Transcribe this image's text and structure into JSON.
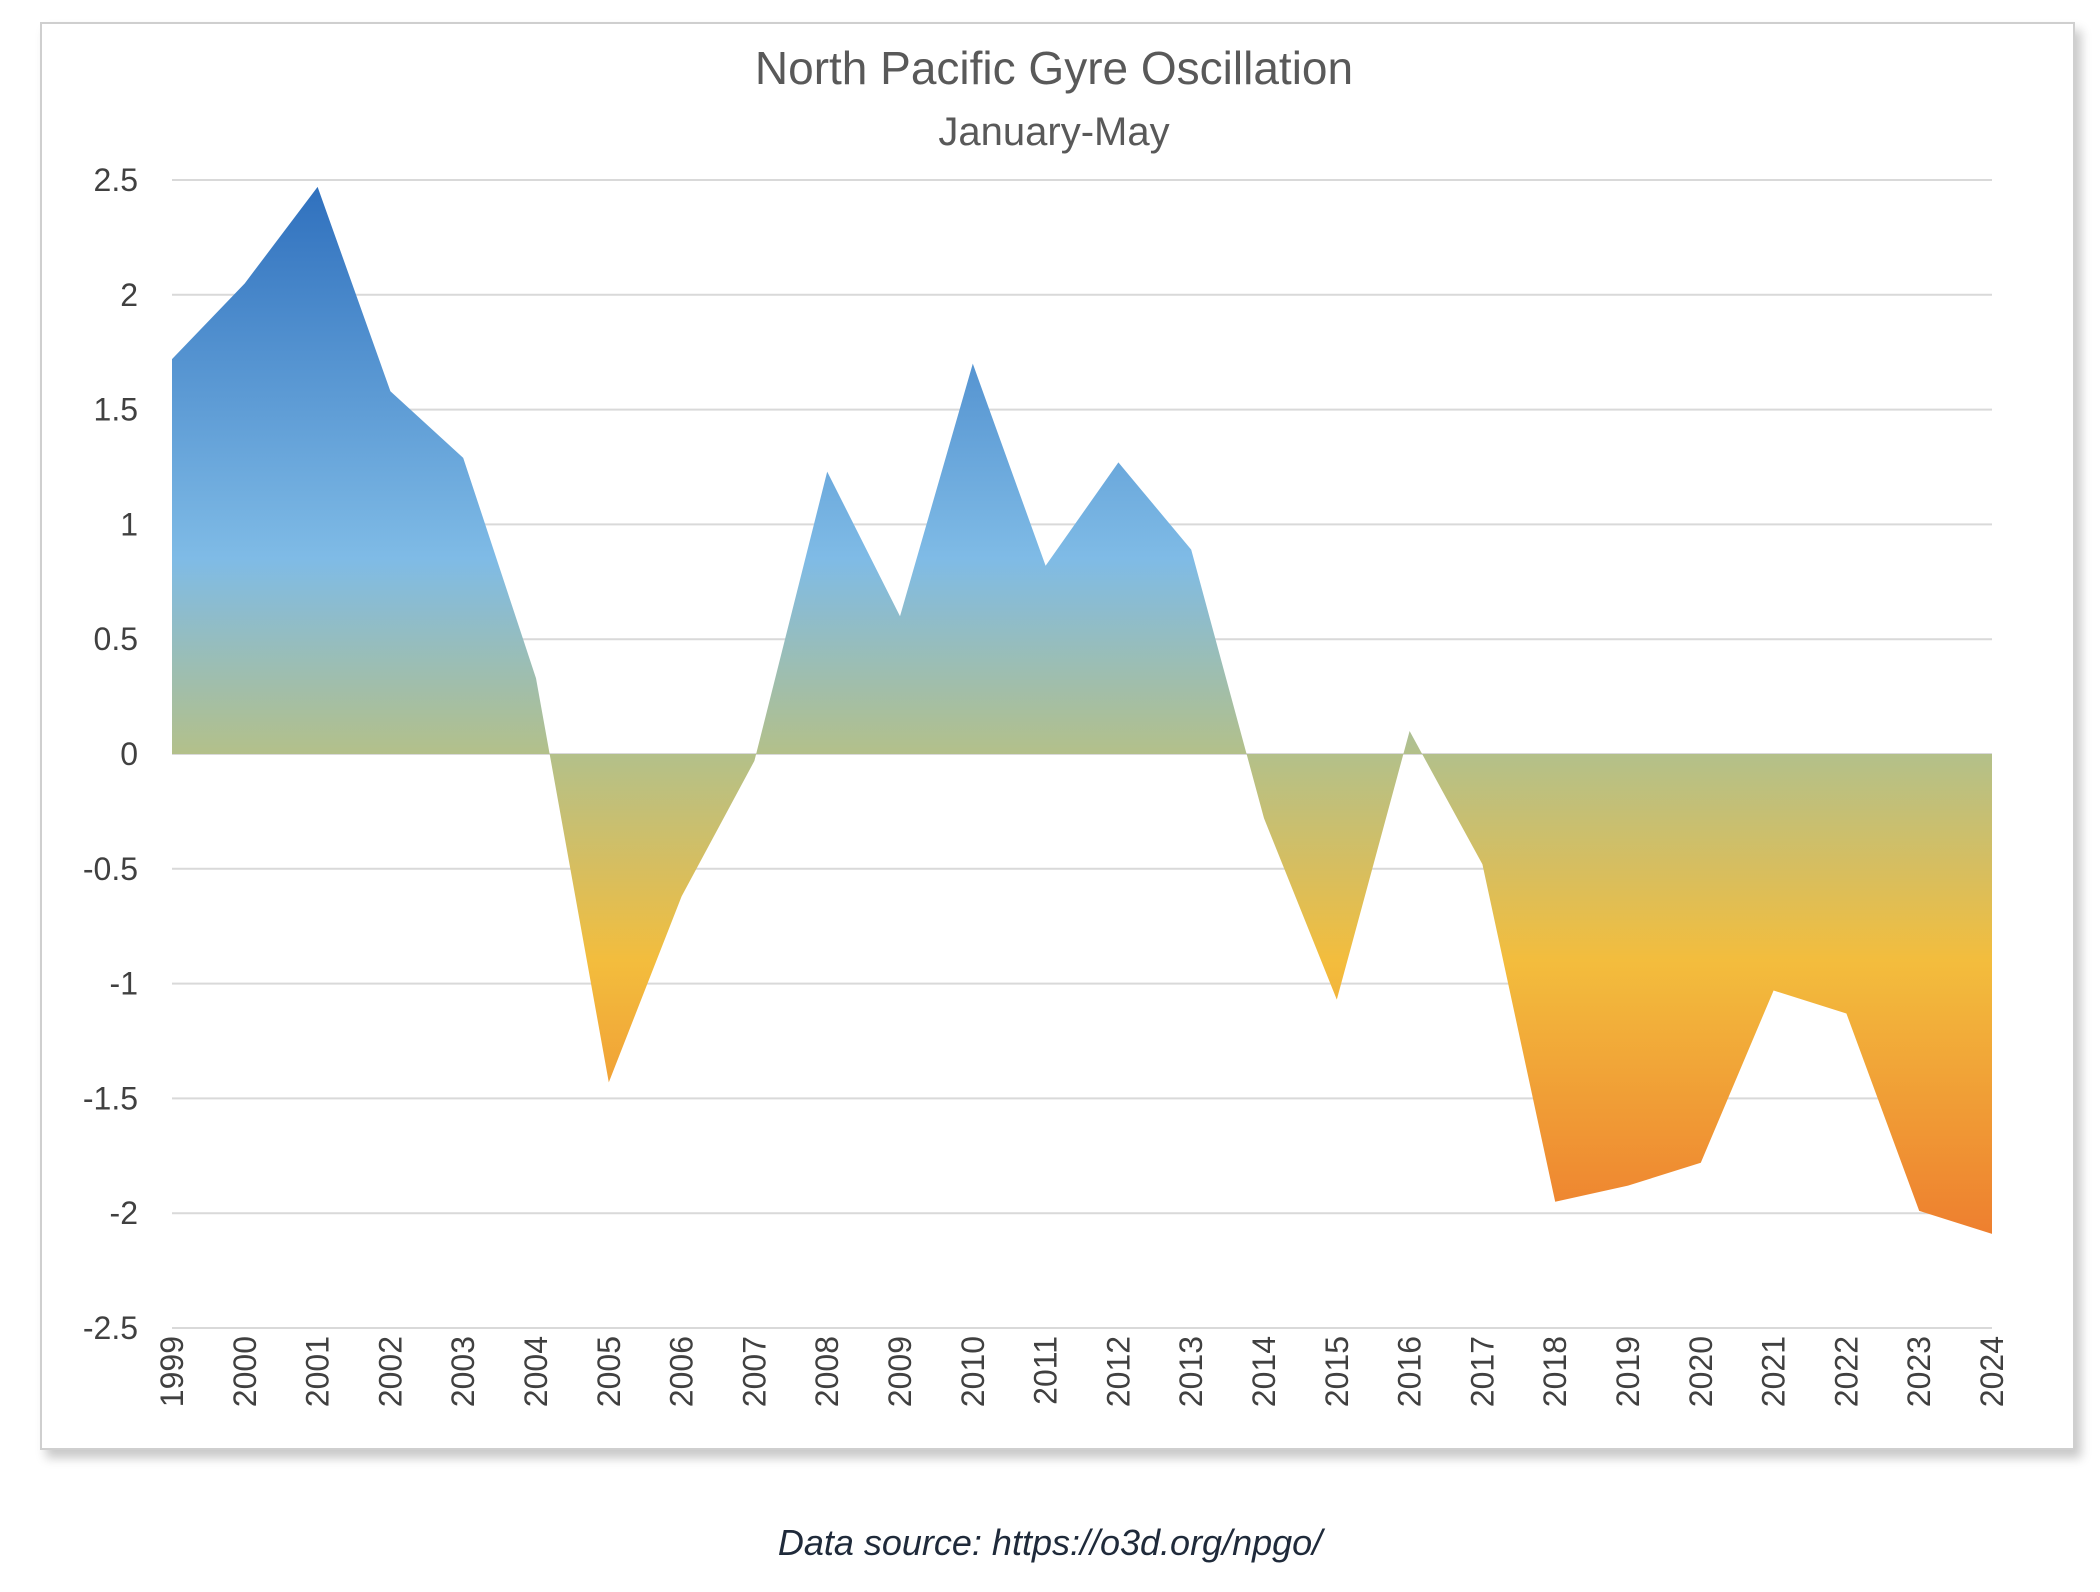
{
  "chart_data": {
    "type": "area",
    "title": "North Pacific Gyre Oscillation",
    "subtitle": "January-May",
    "xlabel": "",
    "ylabel": "",
    "x": [
      "1999",
      "2000",
      "2001",
      "2002",
      "2003",
      "2004",
      "2005",
      "2006",
      "2007",
      "2008",
      "2009",
      "2010",
      "2011",
      "2012",
      "2013",
      "2014",
      "2015",
      "2016",
      "2017",
      "2018",
      "2019",
      "2020",
      "2021",
      "2022",
      "2023",
      "2024"
    ],
    "values": [
      1.72,
      2.05,
      2.47,
      1.58,
      1.29,
      0.33,
      -1.43,
      -0.62,
      -0.03,
      1.23,
      0.6,
      1.7,
      0.82,
      1.27,
      0.89,
      -0.28,
      -1.07,
      0.1,
      -0.48,
      -1.95,
      -1.88,
      -1.78,
      -1.03,
      -1.13,
      -1.99,
      -2.09
    ],
    "ylim": [
      -2.5,
      2.5
    ],
    "yticks": [
      2.5,
      2,
      1.5,
      1,
      0.5,
      0,
      -0.5,
      -1,
      -1.5,
      -2,
      -2.5
    ],
    "ytick_labels": [
      "2.5",
      "2",
      "1.5",
      "1",
      "0.5",
      "0",
      "-0.5",
      "-1",
      "-1.5",
      "-2",
      "-2.5"
    ],
    "grid": true,
    "legend": "none",
    "colors": {
      "top": "#2e6fbd",
      "upper_mid": "#7fbbe6",
      "near_zero": "#b3c08a",
      "lower_mid": "#f3bd3d",
      "bottom": "#ec6a2a"
    }
  },
  "footer": {
    "source_label": "Data source: https://o3d.org/npgo/"
  }
}
